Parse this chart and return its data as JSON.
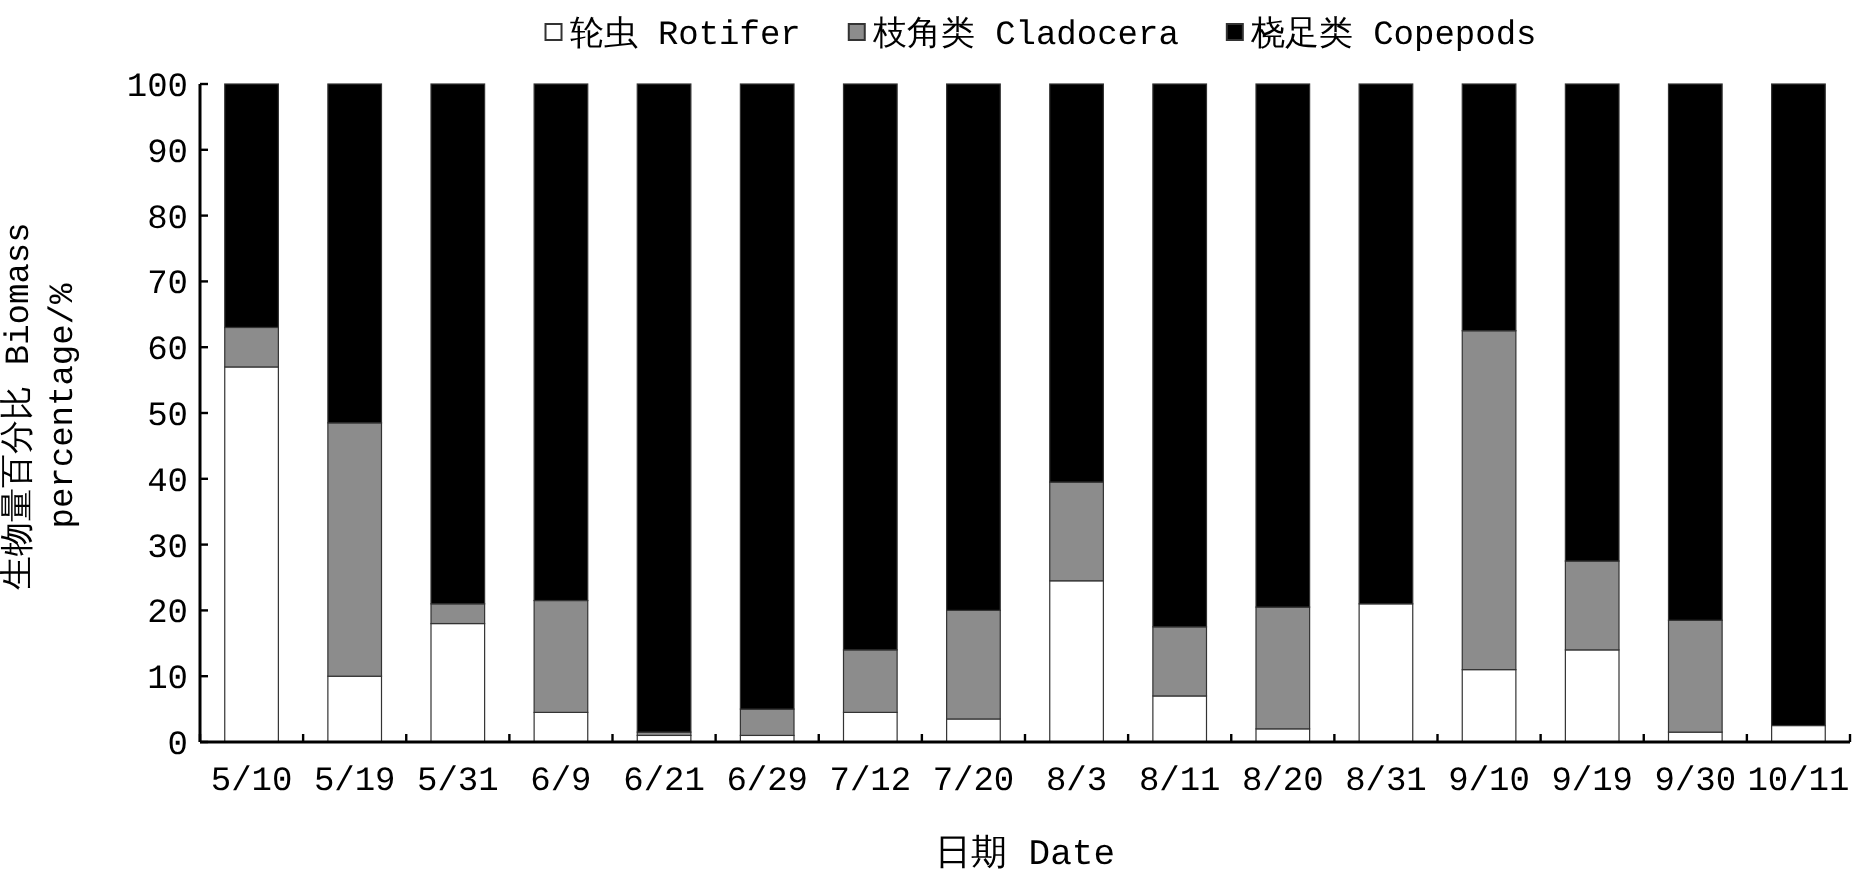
{
  "chart_data": {
    "type": "bar",
    "stacked": true,
    "legend": "top",
    "xlabel": "日期 Date",
    "ylabel": "生物量百分比 Biomass percentage/%",
    "categories": [
      "5/10",
      "5/19",
      "5/31",
      "6/9",
      "6/21",
      "6/29",
      "7/12",
      "7/20",
      "8/3",
      "8/11",
      "8/20",
      "8/31",
      "9/10",
      "9/19",
      "9/30",
      "10/11"
    ],
    "ylim": [
      0,
      100
    ],
    "yticks": [
      0,
      10,
      20,
      30,
      40,
      50,
      60,
      70,
      80,
      90,
      100
    ],
    "series": [
      {
        "name": "轮虫 Rotifer",
        "color": "#ffffff",
        "values": [
          57,
          10,
          18,
          4.5,
          1,
          1,
          4.5,
          3.5,
          24.5,
          7,
          2,
          21,
          11,
          14,
          1.5,
          2.5
        ]
      },
      {
        "name": "枝角类 Cladocera",
        "color": "#8c8c8c",
        "values": [
          6,
          38.5,
          3,
          17,
          0.5,
          4,
          9.5,
          16.5,
          15,
          10.5,
          18.5,
          0,
          51.5,
          13.5,
          17,
          0
        ]
      },
      {
        "name": "桡足类 Copepods",
        "color": "#000000",
        "values": [
          37,
          51.5,
          79,
          78.5,
          98.5,
          95,
          86,
          80,
          60.5,
          82.5,
          79.5,
          79,
          37.5,
          72.5,
          81.5,
          97.5
        ]
      }
    ]
  }
}
